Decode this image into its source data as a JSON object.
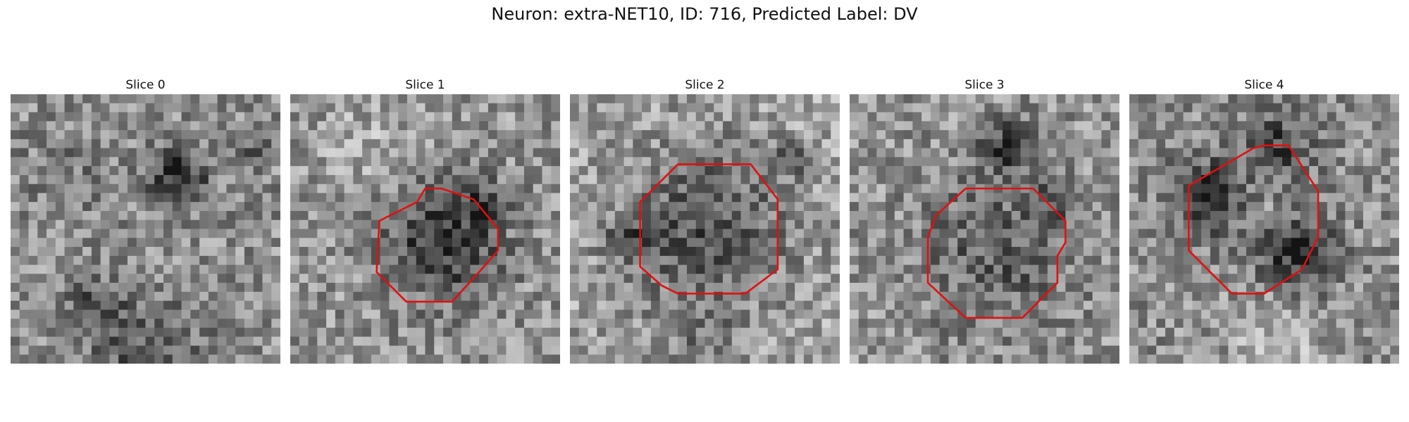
{
  "figure": {
    "title": "Neuron: extra-NET10, ID: 716, Predicted Label: DV",
    "contour_color": "#e01010"
  },
  "slices": [
    {
      "title": "Slice 0",
      "seed": 11,
      "base": 0.56,
      "blobs": [
        [
          0.62,
          0.3,
          0.08,
          -0.4
        ],
        [
          0.3,
          0.78,
          0.08,
          -0.2
        ],
        [
          0.2,
          0.3,
          0.1,
          -0.1
        ],
        [
          0.9,
          0.2,
          0.06,
          -0.15
        ],
        [
          0.5,
          0.95,
          0.15,
          -0.2
        ]
      ],
      "contour": []
    },
    {
      "title": "Slice 1",
      "seed": 23,
      "base": 0.58,
      "blobs": [
        [
          0.57,
          0.55,
          0.15,
          -0.38
        ],
        [
          0.72,
          0.4,
          0.06,
          -0.2
        ],
        [
          0.3,
          0.2,
          0.12,
          0.1
        ]
      ],
      "contour": [
        [
          0.47,
          0.4
        ],
        [
          0.33,
          0.47
        ],
        [
          0.32,
          0.66
        ],
        [
          0.43,
          0.77
        ],
        [
          0.6,
          0.77
        ],
        [
          0.7,
          0.66
        ],
        [
          0.77,
          0.58
        ],
        [
          0.77,
          0.5
        ],
        [
          0.68,
          0.39
        ],
        [
          0.56,
          0.35
        ],
        [
          0.5,
          0.35
        ]
      ]
    },
    {
      "title": "Slice 2",
      "seed": 37,
      "base": 0.64,
      "blobs": [
        [
          0.5,
          0.5,
          0.22,
          -0.32
        ],
        [
          0.21,
          0.54,
          0.05,
          -0.3
        ],
        [
          0.83,
          0.23,
          0.04,
          -0.3
        ],
        [
          0.5,
          0.96,
          0.1,
          -0.15
        ]
      ],
      "contour": [
        [
          0.4,
          0.26
        ],
        [
          0.26,
          0.4
        ],
        [
          0.26,
          0.64
        ],
        [
          0.34,
          0.71
        ],
        [
          0.4,
          0.74
        ],
        [
          0.65,
          0.74
        ],
        [
          0.77,
          0.65
        ],
        [
          0.77,
          0.39
        ],
        [
          0.67,
          0.26
        ]
      ]
    },
    {
      "title": "Slice 3",
      "seed": 41,
      "base": 0.58,
      "blobs": [
        [
          0.58,
          0.2,
          0.07,
          -0.35
        ],
        [
          0.55,
          0.58,
          0.2,
          -0.22
        ],
        [
          0.75,
          0.4,
          0.05,
          -0.2
        ]
      ],
      "contour": [
        [
          0.43,
          0.35
        ],
        [
          0.32,
          0.45
        ],
        [
          0.29,
          0.53
        ],
        [
          0.29,
          0.7
        ],
        [
          0.43,
          0.83
        ],
        [
          0.64,
          0.83
        ],
        [
          0.77,
          0.7
        ],
        [
          0.77,
          0.6
        ],
        [
          0.8,
          0.55
        ],
        [
          0.8,
          0.47
        ],
        [
          0.68,
          0.35
        ],
        [
          0.6,
          0.35
        ]
      ]
    },
    {
      "title": "Slice 4",
      "seed": 53,
      "base": 0.56,
      "blobs": [
        [
          0.55,
          0.2,
          0.1,
          -0.3
        ],
        [
          0.3,
          0.38,
          0.1,
          -0.35
        ],
        [
          0.62,
          0.58,
          0.1,
          -0.4
        ],
        [
          0.5,
          0.4,
          0.1,
          0.1
        ],
        [
          0.55,
          0.92,
          0.12,
          0.15
        ]
      ],
      "contour": [
        [
          0.46,
          0.2
        ],
        [
          0.22,
          0.34
        ],
        [
          0.22,
          0.58
        ],
        [
          0.38,
          0.74
        ],
        [
          0.5,
          0.74
        ],
        [
          0.64,
          0.65
        ],
        [
          0.7,
          0.53
        ],
        [
          0.7,
          0.36
        ],
        [
          0.59,
          0.19
        ],
        [
          0.5,
          0.19
        ]
      ]
    }
  ]
}
